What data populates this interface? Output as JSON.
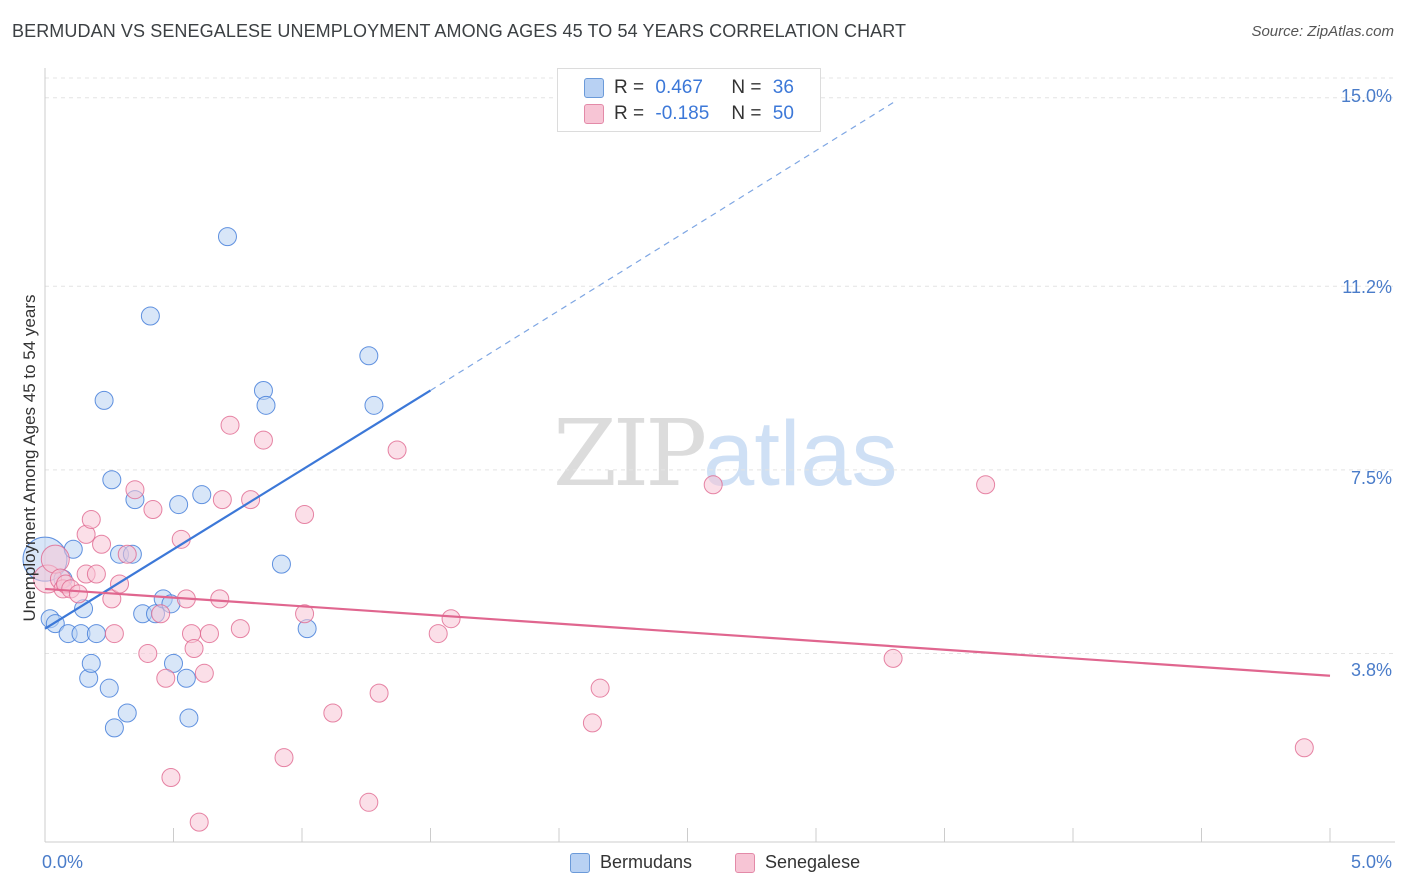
{
  "title": "BERMUDAN VS SENEGALESE UNEMPLOYMENT AMONG AGES 45 TO 54 YEARS CORRELATION CHART",
  "source": "Source: ZipAtlas.com",
  "watermark": {
    "zip": "ZIP",
    "atlas": "atlas"
  },
  "legend_top": {
    "r_label": "R =",
    "n_label": "N =",
    "rows": [
      {
        "r": "0.467",
        "n": "36",
        "color": "#b8d1f3"
      },
      {
        "r": "-0.185",
        "n": "50",
        "color": "#f7c5d5"
      }
    ]
  },
  "chart_data": {
    "type": "scatter",
    "title": "BERMUDAN VS SENEGALESE UNEMPLOYMENT AMONG AGES 45 TO 54 YEARS CORRELATION CHART",
    "xlabel": "",
    "ylabel": "Unemployment Among Ages 45 to 54 years",
    "xlim": [
      0,
      5.0
    ],
    "ylim": [
      0,
      15.8
    ],
    "x_tick_labels": [
      "0.0%",
      "5.0%"
    ],
    "y_ticks": [
      3.8,
      7.5,
      11.2,
      15.0
    ],
    "y_tick_labels": [
      "3.8%",
      "7.5%",
      "11.2%",
      "15.0%"
    ],
    "grid": true,
    "legend": "bottom-center",
    "series": [
      {
        "name": "Bermudans",
        "color": "#3c78d8",
        "fill": "#b8d1f3",
        "R": 0.467,
        "N": 36,
        "trend": {
          "x0": 0.0,
          "y0": 4.3,
          "x1": 1.5,
          "y1": 9.1,
          "dash_to_x": 3.3,
          "dash_to_y": 14.9
        },
        "points": [
          [
            0.0,
            5.7,
            22
          ],
          [
            0.02,
            4.5,
            9
          ],
          [
            0.04,
            4.4,
            9
          ],
          [
            0.07,
            5.3,
            9
          ],
          [
            0.09,
            4.2,
            9
          ],
          [
            0.11,
            5.9,
            9
          ],
          [
            0.14,
            4.2,
            9
          ],
          [
            0.15,
            4.7,
            9
          ],
          [
            0.17,
            3.3,
            9
          ],
          [
            0.18,
            3.6,
            9
          ],
          [
            0.2,
            4.2,
            9
          ],
          [
            0.23,
            8.9,
            9
          ],
          [
            0.25,
            3.1,
            9
          ],
          [
            0.26,
            7.3,
            9
          ],
          [
            0.27,
            2.3,
            9
          ],
          [
            0.29,
            5.8,
            9
          ],
          [
            0.32,
            2.6,
            9
          ],
          [
            0.34,
            5.8,
            9
          ],
          [
            0.35,
            6.9,
            9
          ],
          [
            0.38,
            4.6,
            9
          ],
          [
            0.41,
            10.6,
            9
          ],
          [
            0.43,
            4.6,
            9
          ],
          [
            0.46,
            4.9,
            9
          ],
          [
            0.49,
            4.8,
            9
          ],
          [
            0.5,
            3.6,
            9
          ],
          [
            0.52,
            6.8,
            9
          ],
          [
            0.55,
            3.3,
            9
          ],
          [
            0.56,
            2.5,
            9
          ],
          [
            0.61,
            7.0,
            9
          ],
          [
            0.71,
            12.2,
            9
          ],
          [
            0.85,
            9.1,
            9
          ],
          [
            0.86,
            8.8,
            9
          ],
          [
            0.92,
            5.6,
            9
          ],
          [
            1.02,
            4.3,
            9
          ],
          [
            1.26,
            9.8,
            9
          ],
          [
            1.28,
            8.8,
            9
          ]
        ]
      },
      {
        "name": "Senegalese",
        "color": "#e0668f",
        "fill": "#f7c5d5",
        "R": -0.185,
        "N": 50,
        "trend": {
          "x0": 0.0,
          "y0": 5.1,
          "x1": 5.0,
          "y1": 3.35
        },
        "points": [
          [
            0.01,
            5.3,
            14
          ],
          [
            0.04,
            5.7,
            14
          ],
          [
            0.06,
            5.3,
            10
          ],
          [
            0.07,
            5.1,
            9
          ],
          [
            0.08,
            5.2,
            9
          ],
          [
            0.1,
            5.1,
            9
          ],
          [
            0.13,
            5.0,
            9
          ],
          [
            0.16,
            5.4,
            9
          ],
          [
            0.16,
            6.2,
            9
          ],
          [
            0.18,
            6.5,
            9
          ],
          [
            0.2,
            5.4,
            9
          ],
          [
            0.22,
            6.0,
            9
          ],
          [
            0.26,
            4.9,
            9
          ],
          [
            0.27,
            4.2,
            9
          ],
          [
            0.29,
            5.2,
            9
          ],
          [
            0.32,
            5.8,
            9
          ],
          [
            0.35,
            7.1,
            9
          ],
          [
            0.4,
            3.8,
            9
          ],
          [
            0.42,
            6.7,
            9
          ],
          [
            0.45,
            4.6,
            9
          ],
          [
            0.47,
            3.3,
            9
          ],
          [
            0.49,
            1.3,
            9
          ],
          [
            0.53,
            6.1,
            9
          ],
          [
            0.55,
            4.9,
            9
          ],
          [
            0.57,
            4.2,
            9
          ],
          [
            0.58,
            3.9,
            9
          ],
          [
            0.6,
            0.4,
            9
          ],
          [
            0.62,
            3.4,
            9
          ],
          [
            0.64,
            4.2,
            9
          ],
          [
            0.68,
            4.9,
            9
          ],
          [
            0.69,
            6.9,
            9
          ],
          [
            0.72,
            8.4,
            9
          ],
          [
            0.76,
            4.3,
            9
          ],
          [
            0.8,
            6.9,
            9
          ],
          [
            0.85,
            8.1,
            9
          ],
          [
            0.93,
            1.7,
            9
          ],
          [
            1.01,
            6.6,
            9
          ],
          [
            1.01,
            4.6,
            9
          ],
          [
            1.12,
            2.6,
            9
          ],
          [
            1.26,
            0.8,
            9
          ],
          [
            1.3,
            3.0,
            9
          ],
          [
            1.37,
            7.9,
            9
          ],
          [
            1.53,
            4.2,
            9
          ],
          [
            1.58,
            4.5,
            9
          ],
          [
            2.13,
            2.4,
            9
          ],
          [
            2.16,
            3.1,
            9
          ],
          [
            2.6,
            7.2,
            9
          ],
          [
            3.3,
            3.7,
            9
          ],
          [
            3.66,
            7.2,
            9
          ],
          [
            4.9,
            1.9,
            9
          ]
        ]
      }
    ]
  }
}
